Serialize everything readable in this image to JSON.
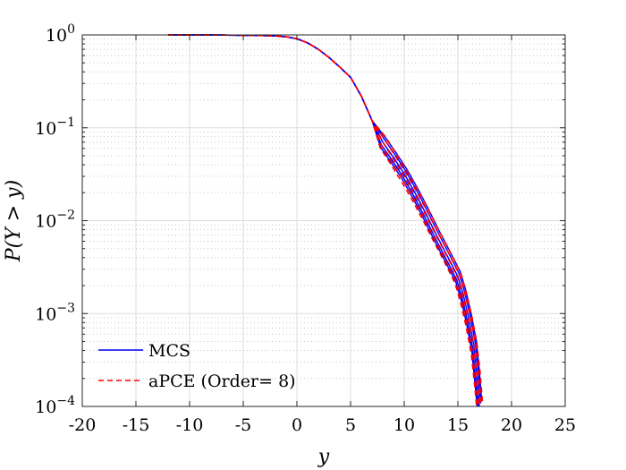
{
  "chart_data": {
    "type": "line",
    "xlabel": "y",
    "ylabel": "P(Y > y)",
    "xlim": [
      -20,
      25
    ],
    "ylim": [
      0.0001,
      1
    ],
    "yscale": "log",
    "grid": true,
    "minor_grid": true,
    "legend_placement": "bottom-left",
    "x_ticks": [
      "-20",
      "-15",
      "-10",
      "-5",
      "0",
      "5",
      "10",
      "15",
      "20",
      "25"
    ],
    "y_ticks": [
      {
        "base": "10",
        "exp": "−4"
      },
      {
        "base": "10",
        "exp": "−3"
      },
      {
        "base": "10",
        "exp": "−2"
      },
      {
        "base": "10",
        "exp": "−1"
      },
      {
        "base": "10",
        "exp": "0"
      }
    ],
    "series": [
      {
        "name": "MCS",
        "color": "#0000ff",
        "style": "solid",
        "replicates": 5,
        "x": [
          -12,
          -8,
          -4,
          -2,
          -1,
          0,
          1,
          2,
          3,
          4,
          5,
          6,
          7,
          8,
          9,
          10,
          11,
          12,
          13,
          14,
          15,
          15.5,
          16,
          16.5,
          16.8,
          17
        ],
        "y": [
          1,
          0.999,
          0.99,
          0.975,
          0.955,
          0.91,
          0.82,
          0.7,
          0.57,
          0.45,
          0.35,
          0.22,
          0.12,
          0.07,
          0.048,
          0.032,
          0.02,
          0.012,
          0.007,
          0.0042,
          0.0025,
          0.0016,
          0.0009,
          0.00045,
          0.0002,
          0.0001
        ]
      },
      {
        "name": "aPCE (Order= 8)",
        "color": "#ff0000",
        "style": "dashed",
        "replicates": 5,
        "x": [
          -12,
          -8,
          -4,
          -2,
          -1,
          0,
          1,
          2,
          3,
          4,
          5,
          6,
          7,
          8,
          9,
          10,
          11,
          12,
          13,
          14,
          15,
          15.5,
          16,
          16.5,
          16.8,
          17
        ],
        "y": [
          1,
          0.999,
          0.99,
          0.975,
          0.955,
          0.91,
          0.82,
          0.7,
          0.57,
          0.45,
          0.35,
          0.22,
          0.12,
          0.07,
          0.046,
          0.03,
          0.019,
          0.0115,
          0.0068,
          0.0041,
          0.0024,
          0.0015,
          0.00085,
          0.00042,
          0.0002,
          0.0001
        ]
      }
    ]
  }
}
